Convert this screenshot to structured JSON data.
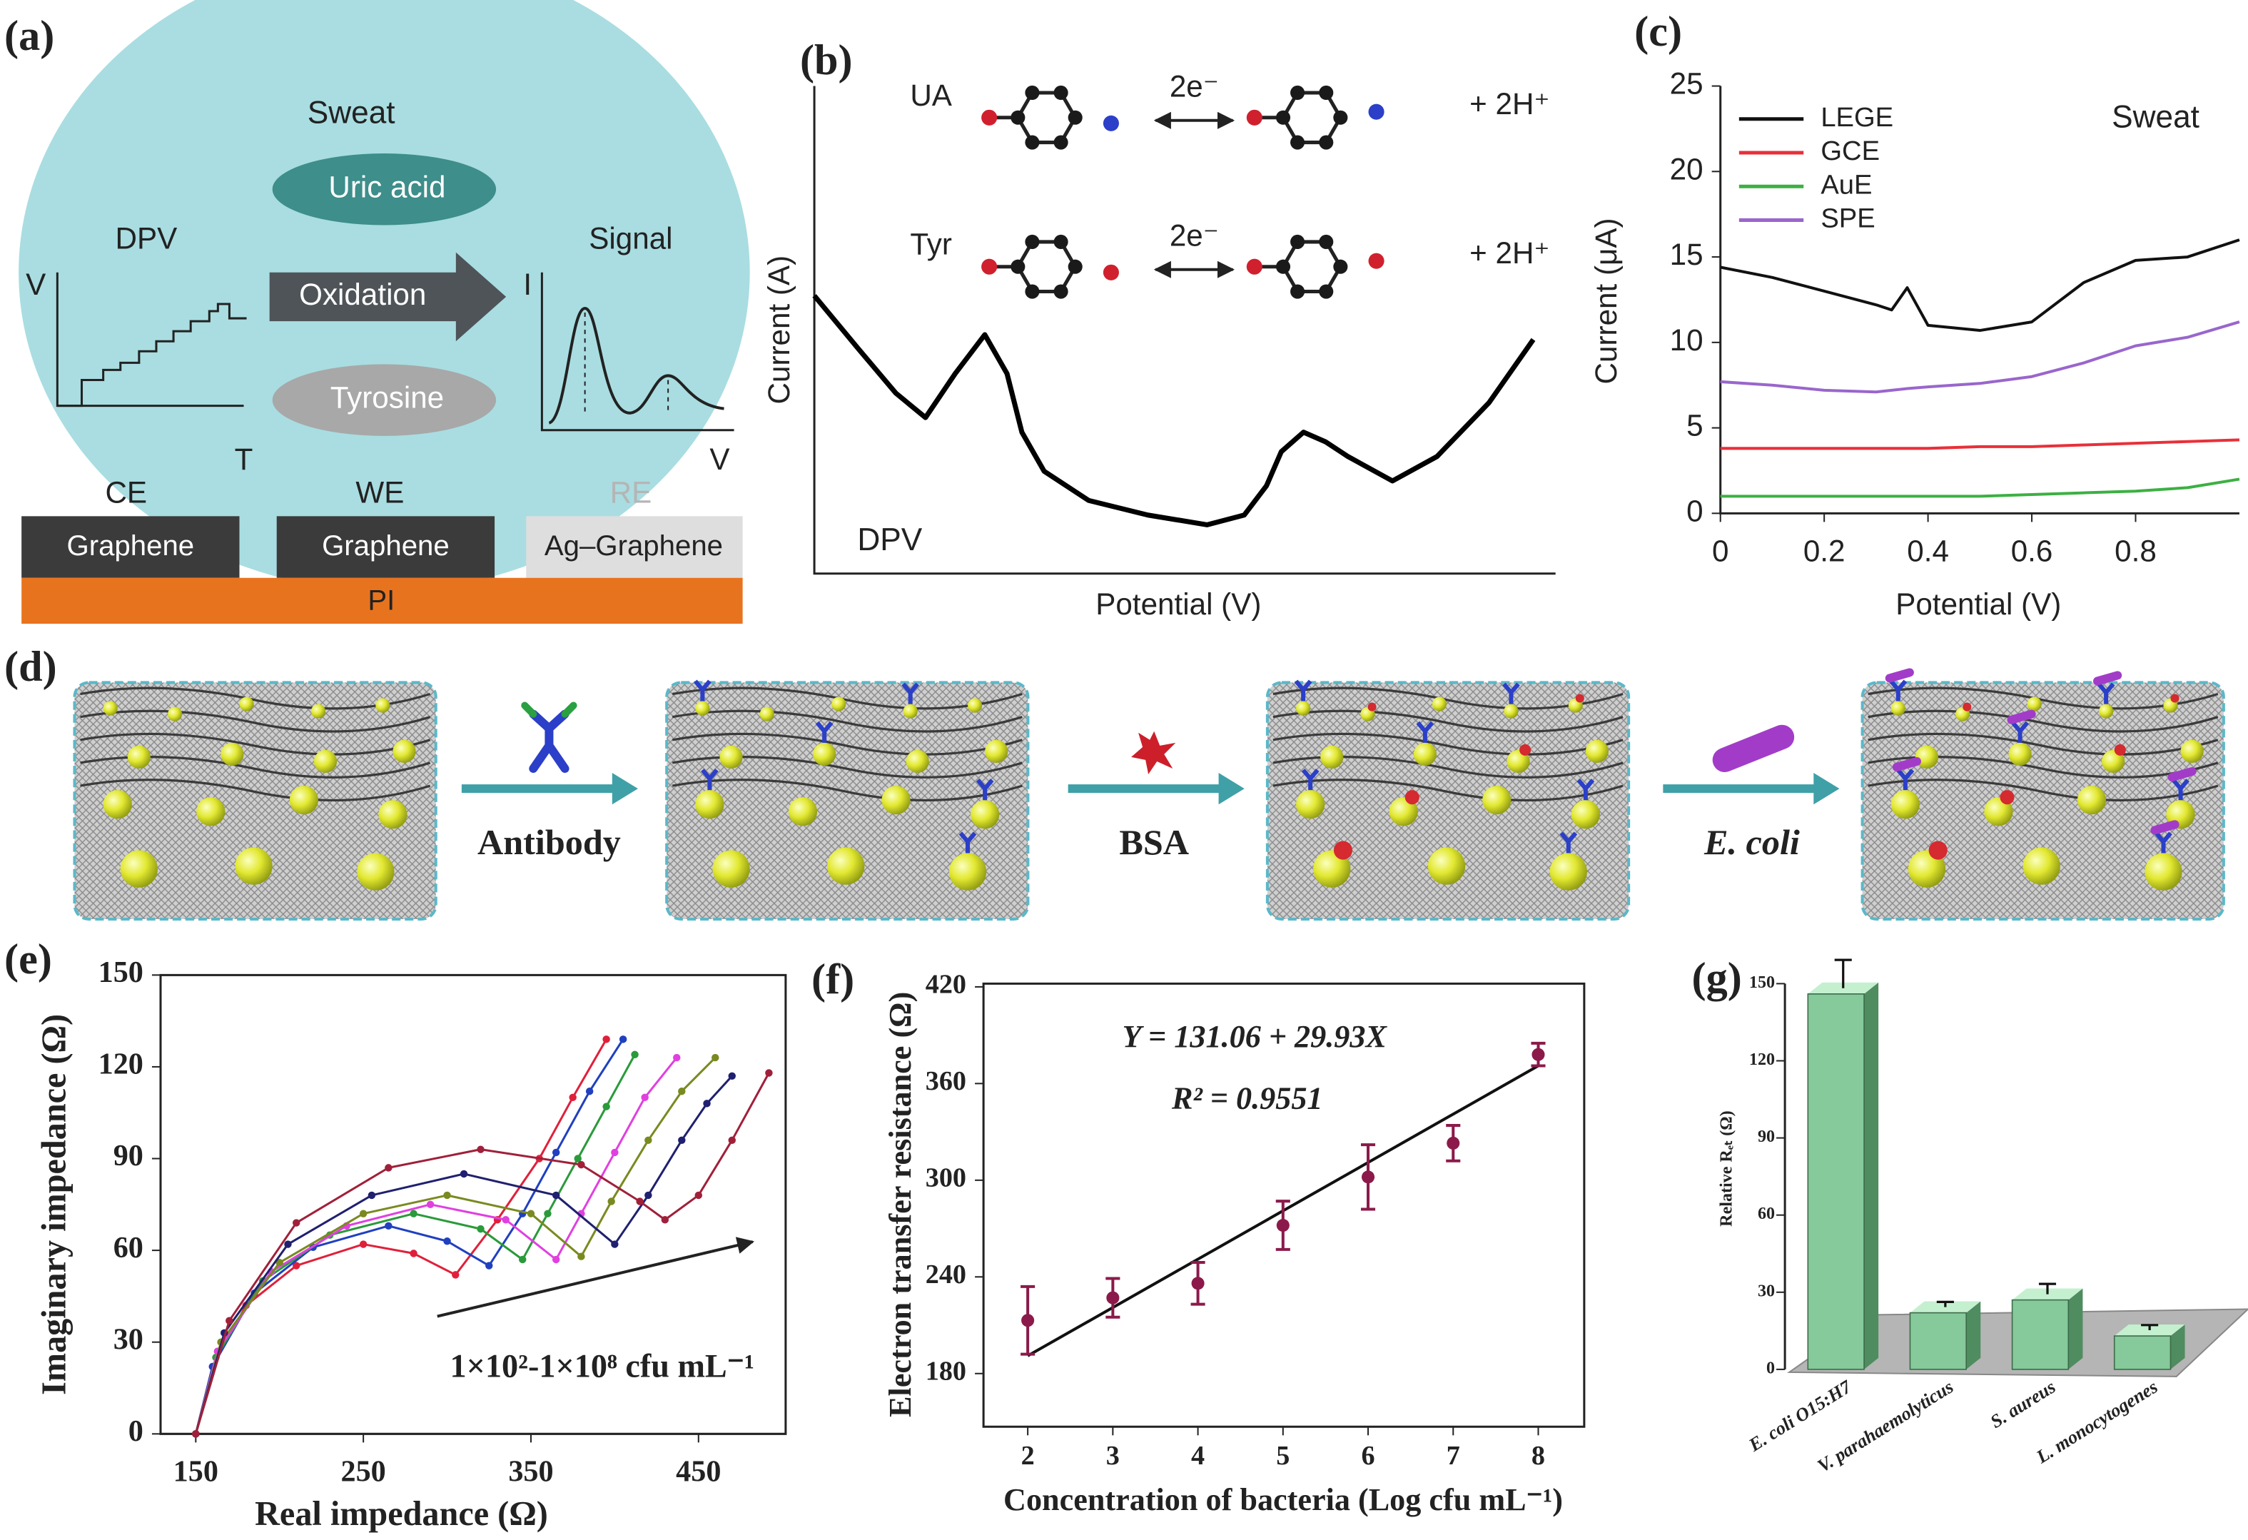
{
  "diagrams": {
    "a": {
      "panel_label": "(a)",
      "sweat": "Sweat",
      "uric_acid": "Uric acid",
      "oxidation": "Oxidation",
      "tyrosine": "Tyrosine",
      "dpv": "DPV",
      "signal": "Signal",
      "dpv_axis_y": "V",
      "dpv_axis_x": "T",
      "signal_axis_y": "I",
      "signal_axis_x": "V",
      "electrodes": [
        {
          "name": "CE",
          "layer": "Graphene"
        },
        {
          "name": "WE",
          "layer": "Graphene"
        },
        {
          "name": "RE",
          "layer": "Ag–Graphene"
        }
      ],
      "substrate": "PI"
    },
    "d": {
      "panel_label": "(d)",
      "steps": [
        "Antibody",
        "BSA",
        "E. coli"
      ]
    }
  },
  "chart_data": [
    {
      "type": "line",
      "panel_label": "(b)",
      "xlabel": "Potential (V)",
      "ylabel": "Current (A)",
      "annotation": "DPV",
      "reactions": [
        {
          "species": "UA",
          "electrons": "2e⁻",
          "protons": "+ 2H⁺"
        },
        {
          "species": "Tyr",
          "electrons": "2e⁻",
          "protons": "+ 2H⁺"
        }
      ],
      "x": [
        0.0,
        0.06,
        0.11,
        0.15,
        0.19,
        0.23,
        0.26,
        0.28,
        0.31,
        0.37,
        0.45,
        0.53,
        0.58,
        0.61,
        0.63,
        0.66,
        0.69,
        0.72,
        0.78,
        0.84,
        0.91,
        0.97
      ],
      "series": [
        {
          "color": "#000000",
          "values": [
            0.57,
            0.46,
            0.37,
            0.32,
            0.41,
            0.49,
            0.41,
            0.29,
            0.21,
            0.15,
            0.12,
            0.1,
            0.12,
            0.18,
            0.25,
            0.29,
            0.27,
            0.24,
            0.19,
            0.24,
            0.35,
            0.48
          ]
        }
      ],
      "xlim": [
        0,
        1
      ],
      "ylim": [
        0,
        1
      ]
    },
    {
      "type": "line",
      "panel_label": "(c)",
      "xlabel": "Potential (V)",
      "ylabel": "Current (μA)",
      "annotation": "Sweat",
      "x": [
        0,
        0.1,
        0.2,
        0.3,
        0.33,
        0.36,
        0.4,
        0.5,
        0.6,
        0.7,
        0.8,
        0.9,
        1.0
      ],
      "series": [
        {
          "name": "LEGE",
          "color": "#111111",
          "values": [
            14.4,
            13.8,
            13.0,
            12.2,
            11.9,
            13.2,
            11.0,
            10.7,
            11.2,
            13.5,
            14.8,
            15.0,
            16.0
          ]
        },
        {
          "name": "GCE",
          "color": "#e8303a",
          "values": [
            3.8,
            3.8,
            3.8,
            3.8,
            3.8,
            3.8,
            3.8,
            3.9,
            3.9,
            4.0,
            4.1,
            4.2,
            4.3
          ]
        },
        {
          "name": "AuE",
          "color": "#3cb043",
          "values": [
            1.0,
            1.0,
            1.0,
            1.0,
            1.0,
            1.0,
            1.0,
            1.0,
            1.1,
            1.2,
            1.3,
            1.5,
            2.0
          ]
        },
        {
          "name": "SPE",
          "color": "#9966cc",
          "values": [
            7.7,
            7.5,
            7.2,
            7.1,
            7.2,
            7.3,
            7.4,
            7.6,
            8.0,
            8.8,
            9.8,
            10.3,
            11.2
          ]
        }
      ],
      "xlim": [
        0,
        1
      ],
      "ylim": [
        0,
        25
      ],
      "xticks": [
        0,
        0.2,
        0.4,
        0.6,
        0.8
      ],
      "yticks": [
        0,
        5,
        10,
        15,
        20,
        25
      ],
      "legend": "upper left"
    },
    {
      "type": "line",
      "markers": true,
      "panel_label": "(e)",
      "xlabel": "Real impedance (Ω)",
      "ylabel": "Imaginary impedance (Ω)",
      "annotation": "1×10²-1×10⁸ cfu mL⁻¹",
      "series": [
        {
          "color": "#e0203a",
          "x": [
            150,
            160,
            180,
            210,
            250,
            280,
            305,
            330,
            355,
            375,
            395
          ],
          "values": [
            0,
            22,
            42,
            55,
            62,
            59,
            52,
            70,
            90,
            110,
            129
          ]
        },
        {
          "color": "#2040c0",
          "x": [
            150,
            160,
            185,
            220,
            265,
            300,
            325,
            345,
            365,
            385,
            405
          ],
          "values": [
            0,
            22,
            46,
            61,
            68,
            63,
            55,
            72,
            92,
            112,
            129
          ]
        },
        {
          "color": "#2a9a3a",
          "x": [
            150,
            162,
            190,
            230,
            280,
            320,
            345,
            360,
            378,
            395,
            412
          ],
          "values": [
            0,
            25,
            50,
            65,
            72,
            67,
            57,
            72,
            90,
            107,
            124
          ]
        },
        {
          "color": "#e040e0",
          "x": [
            150,
            163,
            195,
            240,
            290,
            335,
            365,
            380,
            400,
            418,
            437
          ],
          "values": [
            0,
            27,
            53,
            68,
            75,
            70,
            57,
            72,
            92,
            110,
            123
          ]
        },
        {
          "color": "#7a8a20",
          "x": [
            150,
            165,
            200,
            250,
            300,
            350,
            380,
            398,
            420,
            440,
            460
          ],
          "values": [
            0,
            30,
            56,
            72,
            78,
            72,
            58,
            76,
            96,
            112,
            123
          ]
        },
        {
          "color": "#202070",
          "x": [
            150,
            167,
            205,
            255,
            310,
            365,
            400,
            420,
            440,
            455,
            470
          ],
          "values": [
            0,
            33,
            62,
            78,
            85,
            78,
            62,
            78,
            96,
            108,
            117
          ]
        },
        {
          "color": "#a0203a",
          "x": [
            150,
            170,
            210,
            265,
            320,
            380,
            415,
            430,
            450,
            470,
            492
          ],
          "values": [
            0,
            37,
            69,
            87,
            93,
            88,
            76,
            70,
            78,
            96,
            118
          ]
        }
      ],
      "xlim": [
        129,
        502
      ],
      "ylim": [
        0,
        150
      ],
      "xticks": [
        150,
        250,
        350,
        450
      ],
      "yticks": [
        0,
        30,
        60,
        90,
        120,
        150
      ]
    },
    {
      "type": "scatter",
      "panel_label": "(f)",
      "xlabel": "Concentration of bacteria (Log cfu mL⁻¹)",
      "ylabel": "Electron transfer resistance (Ω)",
      "annotations": [
        "Y = 131.06 + 29.93X",
        "R² = 0.9551"
      ],
      "x": [
        2,
        3,
        4,
        5,
        6,
        7,
        8
      ],
      "values": [
        213,
        227,
        236,
        272,
        302,
        323,
        378
      ],
      "errors": [
        21,
        12,
        13,
        15,
        20,
        11,
        7
      ],
      "color": "#8b1a4a",
      "fit_line": {
        "x": [
          2,
          8
        ],
        "values": [
          191,
          371
        ]
      },
      "xlim": [
        1.48,
        8.54
      ],
      "ylim": [
        147,
        422
      ],
      "xticks": [
        2,
        3,
        4,
        5,
        6,
        7,
        8
      ],
      "yticks": [
        180,
        240,
        300,
        360,
        420
      ]
    },
    {
      "type": "bar",
      "panel_label": "(g)",
      "ylabel": "Relative Rₑₜ (Ω)",
      "categories": [
        "E. coli O15:H7",
        "V. parahaemolyticus",
        "S. aureus",
        "L. monocytogenes"
      ],
      "values": [
        146,
        22,
        27,
        13
      ],
      "errors": [
        11,
        2,
        4,
        2
      ],
      "color": "#86c99a",
      "ylim": [
        0,
        150
      ],
      "yticks": [
        0,
        30,
        60,
        90,
        120,
        150
      ]
    }
  ]
}
